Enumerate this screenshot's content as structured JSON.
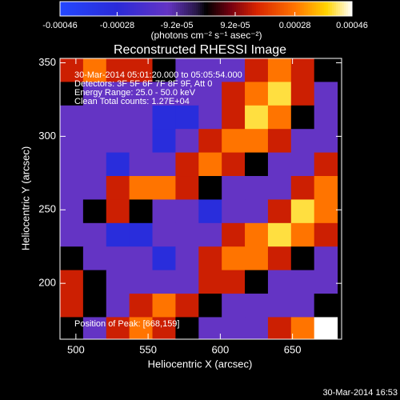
{
  "chart_data": {
    "type": "heatmap",
    "title": "Reconstructed RHESSI Image",
    "x_label": "Heliocentric X (arcsec)",
    "y_label": "Heliocentric Y (arcsec)",
    "colorbar_label": "(photons cm⁻² s⁻¹ asec⁻²)",
    "annotations": [
      "30-Mar-2014 05:01:20.000 to 05:05:54.000",
      "Detectors: 3F 5F 6F 7F 8F 9F, Att 0",
      "Energy Range: 25.0 - 50.0 keV",
      "Clean     Total counts: 1.27E+04"
    ],
    "peak_label": "Position of Peak: [668,159]",
    "timestamp": "30-Mar-2014 16:53",
    "xlim": [
      489,
      684
    ],
    "ylim": [
      162,
      353
    ],
    "xticks": [
      500,
      550,
      600,
      650
    ],
    "yticks": [
      200,
      250,
      300,
      350
    ],
    "clim": [
      -0.00046,
      0.00046
    ],
    "cticks": [
      -0.00046,
      -0.00028,
      {
        "value": -9.2e-05,
        "label": "-9.2e-05"
      },
      {
        "value": 9.2e-05,
        "label": "9.2e-05"
      },
      0.00028,
      0.00046
    ],
    "colormap": [
      [
        -0.00046,
        "#2448ff"
      ],
      [
        -0.00028,
        "#2a2ad8"
      ],
      [
        -0.00012,
        "#6434c4"
      ],
      [
        -3e-05,
        "#281848"
      ],
      [
        0,
        "#000000"
      ],
      [
        8e-05,
        "#780010"
      ],
      [
        0.00016,
        "#d82400"
      ],
      [
        0.00028,
        "#ff7400"
      ],
      [
        0.00038,
        "#ffd400"
      ],
      [
        0.00046,
        "#ffffff"
      ]
    ],
    "x": [
      497,
      513,
      529,
      545,
      561,
      577,
      593,
      609,
      625,
      641,
      657,
      673
    ],
    "y": [
      345,
      329,
      313,
      297,
      281,
      265,
      249,
      233,
      217,
      201,
      185,
      169
    ],
    "z": [
      [
        0.00015,
        0.00028,
        0.00015,
        0.00015,
        0,
        -0.00012,
        -0.00012,
        -0.00012,
        0.00015,
        0.00028,
        0.00015,
        0
      ],
      [
        0,
        -0.00012,
        -0.00012,
        -0.00012,
        -0.00012,
        -0.00012,
        -0.00012,
        0.00015,
        0.00028,
        0.0004,
        0.00015,
        -0.00012
      ],
      [
        -0.00012,
        -0.00012,
        -0.00012,
        -0.00012,
        -0.0003,
        -0.0003,
        -0.00012,
        0.00015,
        0.0004,
        0.00028,
        0,
        -0.00012
      ],
      [
        -0.00012,
        -0.00012,
        -0.00012,
        -0.00012,
        -0.0003,
        -0.00012,
        0.00015,
        0.00028,
        0.00028,
        0.00015,
        -0.00012,
        -0.00012
      ],
      [
        -0.00012,
        -0.00012,
        -0.0003,
        -0.00012,
        -0.00012,
        0.00015,
        0.00028,
        0.00015,
        0,
        -0.00012,
        -0.00012,
        0.00015
      ],
      [
        -0.00012,
        -0.00012,
        0.00015,
        0.00028,
        0.00028,
        0.00015,
        0,
        -0.00012,
        -0.00012,
        -0.00012,
        0.00015,
        0.00028
      ],
      [
        -0.00012,
        0,
        0.00015,
        0,
        -0.00012,
        -0.00012,
        -0.0003,
        -0.00012,
        -0.00012,
        0.00015,
        0.0004,
        0.00028
      ],
      [
        -0.00012,
        -0.00012,
        -0.0003,
        -0.0003,
        -0.00012,
        -0.00012,
        -0.00012,
        0.00015,
        0.00028,
        0.0004,
        0.00028,
        0.00015
      ],
      [
        0,
        -0.00012,
        -0.00012,
        -0.00012,
        -0.0003,
        -0.00012,
        0.00015,
        0.00028,
        0.00028,
        0.00015,
        0,
        -0.00012
      ],
      [
        0.00015,
        0,
        -0.00012,
        -0.00012,
        -0.00012,
        -0.00012,
        0.00015,
        0.00015,
        0,
        -0.00012,
        -0.00012,
        -0.00012
      ],
      [
        0.00015,
        0,
        -0.00012,
        0.00015,
        0.00028,
        0.00015,
        0,
        -0.00012,
        -0.00012,
        -0.00012,
        -0.00012,
        0
      ],
      [
        0,
        -0.00012,
        0.00015,
        0.00028,
        0.00015,
        0,
        -0.00012,
        -0.00012,
        -0.00012,
        0.00015,
        0.00028,
        0.00046
      ]
    ]
  }
}
